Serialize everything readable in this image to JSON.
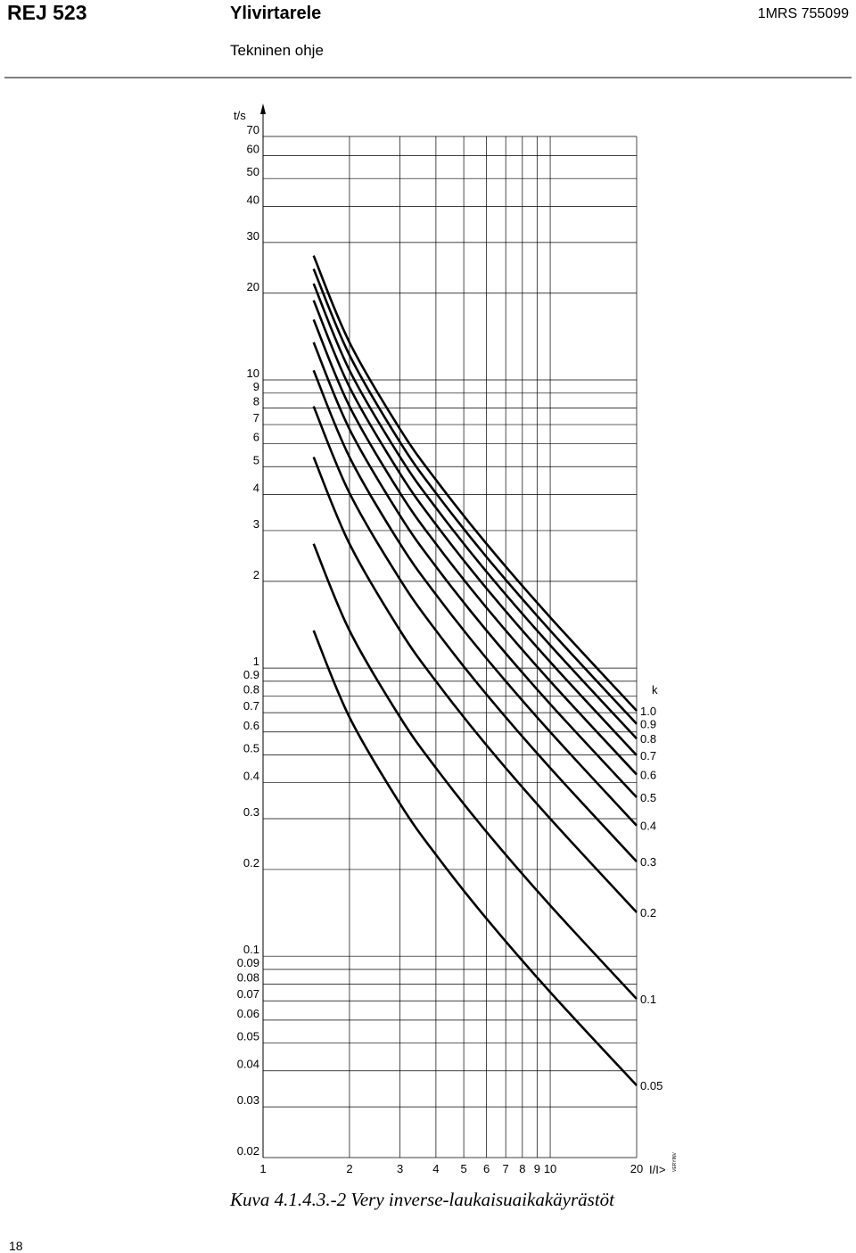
{
  "header": {
    "product": "REJ 523",
    "title": "Ylivirtarele",
    "subtitle": "Tekninen ohje",
    "doc_id": "1MRS 755099"
  },
  "chart_data": {
    "type": "line",
    "y_label": "t/s",
    "x_label": "I/I>",
    "legend_title": "k",
    "code": "VERYINV",
    "x": [
      1.5,
      2,
      3,
      4,
      6,
      10,
      20
    ],
    "xlim": [
      1,
      20
    ],
    "ylim": [
      0.02,
      70
    ],
    "xlog": true,
    "ylog": true,
    "grid": true,
    "xticks": [
      1,
      2,
      3,
      4,
      5,
      6,
      7,
      8,
      9,
      10,
      20
    ],
    "yticks": [
      70,
      60,
      50,
      40,
      30,
      20,
      10,
      9,
      8,
      7,
      6,
      5,
      4,
      3,
      2,
      1,
      0.9,
      0.8,
      0.7,
      0.6,
      0.5,
      0.4,
      0.3,
      0.2,
      0.1,
      0.09,
      0.08,
      0.07,
      0.06,
      0.05,
      0.04,
      0.03,
      0.02
    ],
    "series": [
      {
        "name": "1.0",
        "color": "#000000",
        "values": [
          27,
          13.5,
          6.75,
          4.5,
          2.7,
          1.5,
          0.711
        ]
      },
      {
        "name": "0.9",
        "color": "#000000",
        "values": [
          24.3,
          12.2,
          6.08,
          4.05,
          2.43,
          1.35,
          0.64
        ]
      },
      {
        "name": "0.8",
        "color": "#000000",
        "values": [
          21.6,
          10.8,
          5.4,
          3.6,
          2.16,
          1.2,
          0.569
        ]
      },
      {
        "name": "0.7",
        "color": "#000000",
        "values": [
          18.9,
          9.45,
          4.73,
          3.15,
          1.89,
          1.05,
          0.498
        ]
      },
      {
        "name": "0.6",
        "color": "#000000",
        "values": [
          16.2,
          8.1,
          4.05,
          2.7,
          1.62,
          0.9,
          0.427
        ]
      },
      {
        "name": "0.5",
        "color": "#000000",
        "values": [
          13.5,
          6.75,
          3.38,
          2.25,
          1.35,
          0.75,
          0.356
        ]
      },
      {
        "name": "0.4",
        "color": "#000000",
        "values": [
          10.8,
          5.4,
          2.7,
          1.8,
          1.08,
          0.6,
          0.284
        ]
      },
      {
        "name": "0.3",
        "color": "#000000",
        "values": [
          8.1,
          4.05,
          2.03,
          1.35,
          0.81,
          0.45,
          0.213
        ]
      },
      {
        "name": "0.2",
        "color": "#000000",
        "values": [
          5.4,
          2.7,
          1.35,
          0.9,
          0.54,
          0.3,
          0.142
        ]
      },
      {
        "name": "0.1",
        "color": "#000000",
        "values": [
          2.7,
          1.35,
          0.675,
          0.45,
          0.27,
          0.15,
          0.0711
        ]
      },
      {
        "name": "0.05",
        "color": "#000000",
        "values": [
          1.35,
          0.675,
          0.338,
          0.225,
          0.135,
          0.075,
          0.0356
        ]
      }
    ]
  },
  "caption": "Kuva 4.1.4.3.-2 Very inverse-laukaisuaikakäyrästöt",
  "page_number": "18"
}
